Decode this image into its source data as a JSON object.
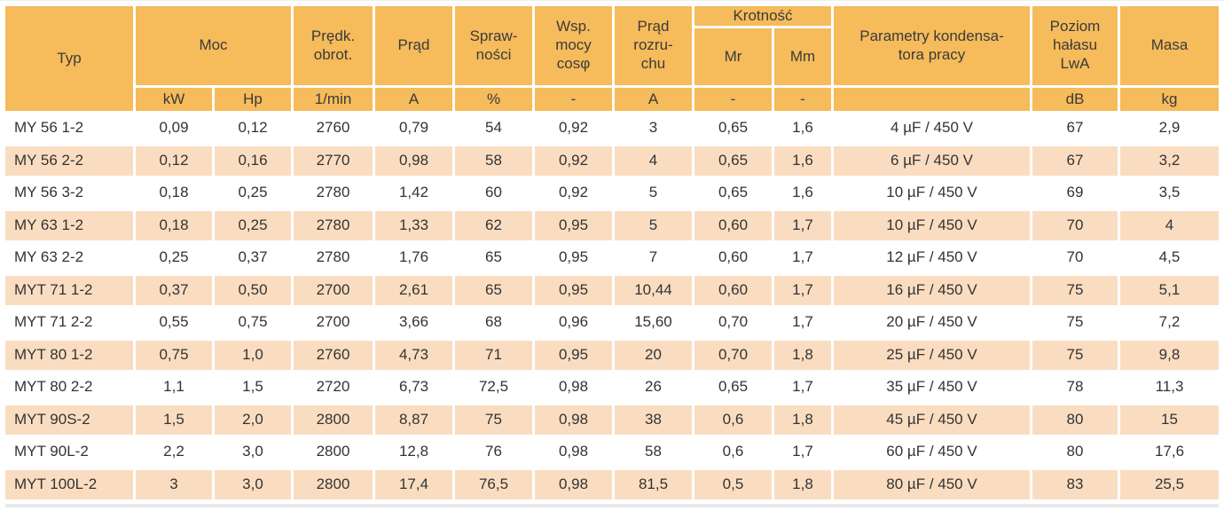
{
  "colors": {
    "header_bg": "#F6BB5B",
    "alt_row_bg": "#FADDC1",
    "text": "#333333"
  },
  "table": {
    "header": {
      "typ": "Typ",
      "moc": "Moc",
      "predk_obrot": "Prędk.\nobrot.",
      "prad": "Prąd",
      "sprawnosci": "Spraw-\nności",
      "wsp_mocy": "Wsp.\nmocy\ncosφ",
      "prad_rozruchu": "Prąd\nrozru-\nchu",
      "krotnosc": "Krotność",
      "mr": "Mr",
      "mm": "Mm",
      "parametry": "Parametry kondensa-\ntora pracy",
      "poziom": "Poziom\nhałasu\nLwA",
      "masa": "Masa"
    },
    "units": [
      "kW",
      "Hp",
      "1/min",
      "A",
      "%",
      "-",
      "A",
      "-",
      "-",
      "",
      "dB",
      "kg"
    ],
    "rows": [
      [
        "MY 56 1-2",
        "0,09",
        "0,12",
        "2760",
        "0,79",
        "54",
        "0,92",
        "3",
        "0,65",
        "1,6",
        "4 µF / 450 V",
        "67",
        "2,9"
      ],
      [
        "MY 56 2-2",
        "0,12",
        "0,16",
        "2770",
        "0,98",
        "58",
        "0,92",
        "4",
        "0,65",
        "1,6",
        "6 µF / 450 V",
        "67",
        "3,2"
      ],
      [
        "MY 56 3-2",
        "0,18",
        "0,25",
        "2780",
        "1,42",
        "60",
        "0,92",
        "5",
        "0,65",
        "1,6",
        "10 µF / 450 V",
        "69",
        "3,5"
      ],
      [
        "MY 63 1-2",
        "0,18",
        "0,25",
        "2780",
        "1,33",
        "62",
        "0,95",
        "5",
        "0,60",
        "1,7",
        "10 µF / 450 V",
        "70",
        "4"
      ],
      [
        "MY 63 2-2",
        "0,25",
        "0,37",
        "2780",
        "1,76",
        "65",
        "0,95",
        "7",
        "0,60",
        "1,7",
        "12 µF / 450 V",
        "70",
        "4,5"
      ],
      [
        "MYT 71 1-2",
        "0,37",
        "0,50",
        "2700",
        "2,61",
        "65",
        "0,95",
        "10,44",
        "0,60",
        "1,7",
        "16 µF / 450 V",
        "75",
        "5,1"
      ],
      [
        "MYT 71 2-2",
        "0,55",
        "0,75",
        "2700",
        "3,66",
        "68",
        "0,96",
        "15,60",
        "0,70",
        "1,7",
        "20 µF / 450 V",
        "75",
        "7,2"
      ],
      [
        "MYT 80 1-2",
        "0,75",
        "1,0",
        "2760",
        "4,73",
        "71",
        "0,95",
        "20",
        "0,70",
        "1,8",
        "25 µF / 450 V",
        "75",
        "9,8"
      ],
      [
        "MYT 80 2-2",
        "1,1",
        "1,5",
        "2720",
        "6,73",
        "72,5",
        "0,98",
        "26",
        "0,65",
        "1,7",
        "35 µF / 450 V",
        "78",
        "11,3"
      ],
      [
        "MYT 90S-2",
        "1,5",
        "2,0",
        "2800",
        "8,87",
        "75",
        "0,98",
        "38",
        "0,6",
        "1,8",
        "45 µF / 450 V",
        "80",
        "15"
      ],
      [
        "MYT 90L-2",
        "2,2",
        "3,0",
        "2800",
        "12,8",
        "76",
        "0,98",
        "58",
        "0,6",
        "1,7",
        "60 µF / 450 V",
        "80",
        "17,6"
      ],
      [
        "MYT 100L-2",
        "3",
        "3,0",
        "2800",
        "17,4",
        "76,5",
        "0,98",
        "81,5",
        "0,5",
        "1,8",
        "80 µF / 450 V",
        "83",
        "25,5"
      ]
    ]
  }
}
